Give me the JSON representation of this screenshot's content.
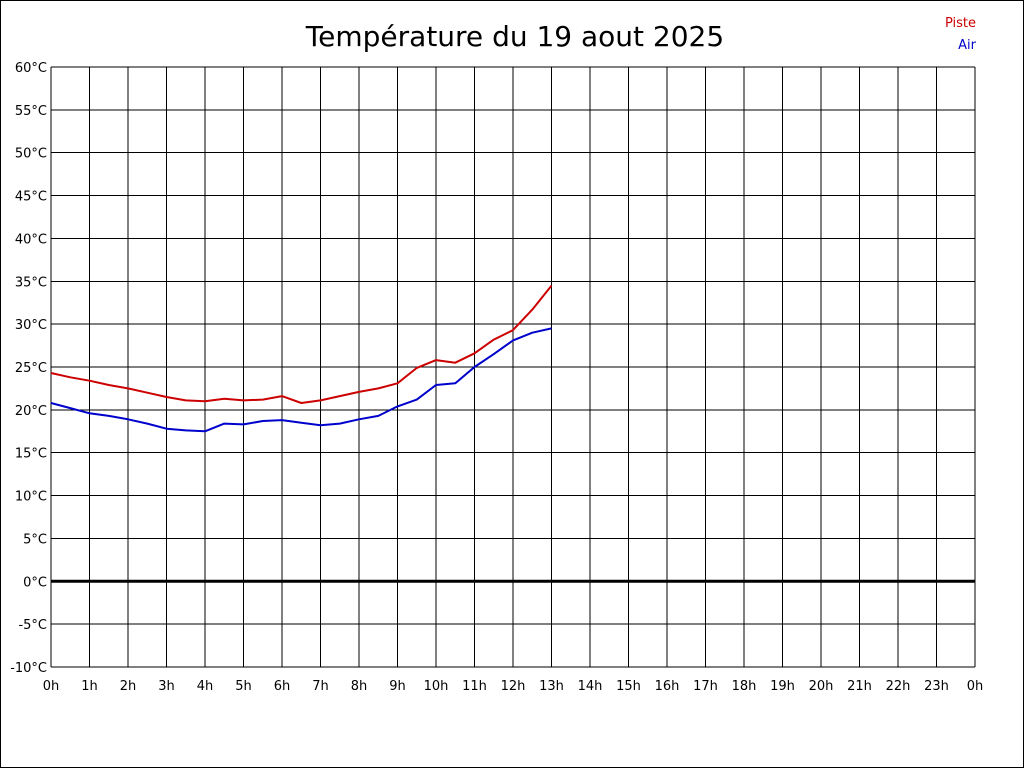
{
  "colors": {
    "background": "#ffffff",
    "grid": "#000000",
    "zero_line": "#000000",
    "piste": "#cc0000",
    "air": "#0000cc"
  },
  "chart_data": {
    "type": "line",
    "title": "Température du 19 aout 2025",
    "xlabel": "",
    "ylabel": "",
    "xlim": [
      0,
      24
    ],
    "ylim": [
      -10,
      60
    ],
    "grid": true,
    "legend_position": "top-right",
    "x_tick_labels": [
      "0h",
      "1h",
      "2h",
      "3h",
      "4h",
      "5h",
      "6h",
      "7h",
      "8h",
      "9h",
      "10h",
      "11h",
      "12h",
      "13h",
      "14h",
      "15h",
      "16h",
      "17h",
      "18h",
      "19h",
      "20h",
      "21h",
      "22h",
      "23h",
      "0h"
    ],
    "y_tick_labels": [
      "60°C",
      "55°C",
      "50°C",
      "45°C",
      "40°C",
      "35°C",
      "30°C",
      "25°C",
      "20°C",
      "15°C",
      "10°C",
      "5°C",
      "0°C",
      "-5°C",
      "-10°C"
    ],
    "y_tick_values": [
      60,
      55,
      50,
      45,
      40,
      35,
      30,
      25,
      20,
      15,
      10,
      5,
      0,
      -5,
      -10
    ],
    "series": [
      {
        "name": "Piste",
        "color": "#cc0000",
        "x": [
          0,
          0.5,
          1,
          1.5,
          2,
          2.5,
          3,
          3.5,
          4,
          4.5,
          5,
          5.5,
          6,
          6.5,
          7,
          7.5,
          8,
          8.5,
          9,
          9.5,
          10,
          10.5,
          11,
          11.5,
          12,
          12.5,
          13
        ],
        "y": [
          24.3,
          23.8,
          23.4,
          22.9,
          22.5,
          22.0,
          21.5,
          21.1,
          21.0,
          21.3,
          21.1,
          21.2,
          21.6,
          20.8,
          21.1,
          21.6,
          22.1,
          22.5,
          23.1,
          24.9,
          25.8,
          25.5,
          26.6,
          28.2,
          29.3,
          31.7,
          34.5
        ]
      },
      {
        "name": "Air",
        "color": "#0000cc",
        "x": [
          0,
          0.5,
          1,
          1.5,
          2,
          2.5,
          3,
          3.5,
          4,
          4.5,
          5,
          5.5,
          6,
          6.5,
          7,
          7.5,
          8,
          8.5,
          9,
          9.5,
          10,
          10.5,
          11,
          11.5,
          12,
          12.5,
          13
        ],
        "y": [
          20.8,
          20.2,
          19.6,
          19.3,
          18.9,
          18.4,
          17.8,
          17.6,
          17.5,
          18.4,
          18.3,
          18.7,
          18.8,
          18.5,
          18.2,
          18.4,
          18.9,
          19.3,
          20.4,
          21.2,
          22.9,
          23.1,
          25.0,
          26.5,
          28.1,
          29.0,
          29.5
        ]
      }
    ]
  }
}
